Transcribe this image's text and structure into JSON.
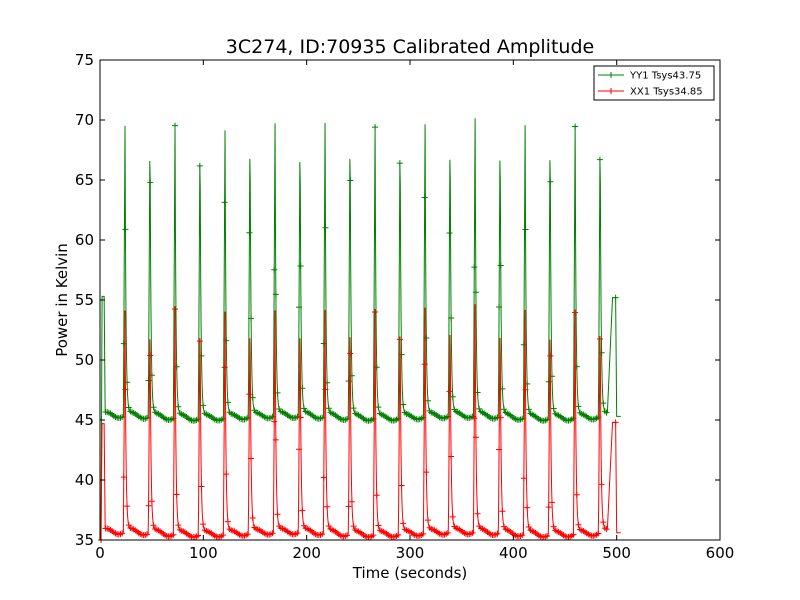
{
  "chart_data": {
    "type": "line",
    "title": "3C274, ID:70935 Calibrated Amplitude",
    "xlabel": "Time (seconds)",
    "ylabel": "Power in Kelvin",
    "xlim": [
      0,
      600
    ],
    "ylim": [
      35,
      75
    ],
    "xticks": [
      "0",
      "100",
      "200",
      "300",
      "400",
      "500",
      "600"
    ],
    "yticks": [
      "35",
      "40",
      "45",
      "50",
      "55",
      "60",
      "65",
      "70",
      "75"
    ],
    "grid": false,
    "legend_position": "top-right",
    "marker": "plus",
    "pulse_period_s": 24.2,
    "series": [
      {
        "name": "YY1 Tsys43.75",
        "color": "#008000",
        "baseline": 45.3,
        "edge_start": 55.3,
        "edge_end": 55.2,
        "pulse_times": [
          24.2,
          48.4,
          72.6,
          96.8,
          121.0,
          145.2,
          169.4,
          193.6,
          217.8,
          242.0,
          266.2,
          290.4,
          314.6,
          338.8,
          363.0,
          387.2,
          411.4,
          435.6,
          459.8,
          484.0
        ],
        "peaks": [
          69.4,
          69.6,
          69.6,
          69.3,
          69.2,
          69.8,
          69.6,
          69.4,
          69.7,
          69.9,
          69.5,
          69.5,
          69.6,
          69.6,
          70.0,
          69.6,
          69.6,
          69.8,
          69.5,
          69.7
        ]
      },
      {
        "name": "XX1 Tsys34.85",
        "color": "#ff0000",
        "baseline": 35.6,
        "edge_start": 44.7,
        "edge_end": 44.8,
        "pulse_times": [
          24.2,
          48.4,
          72.6,
          96.8,
          121.0,
          145.2,
          169.4,
          193.6,
          217.8,
          242.0,
          266.2,
          290.4,
          314.6,
          338.8,
          363.0,
          387.2,
          411.4,
          435.6,
          459.8,
          484.0
        ],
        "peaks": [
          54.0,
          54.0,
          54.3,
          54.0,
          54.1,
          54.1,
          54.0,
          54.0,
          54.1,
          54.3,
          54.1,
          54.1,
          54.3,
          54.3,
          54.5,
          54.1,
          54.2,
          54.1,
          54.0,
          54.0
        ]
      }
    ]
  }
}
